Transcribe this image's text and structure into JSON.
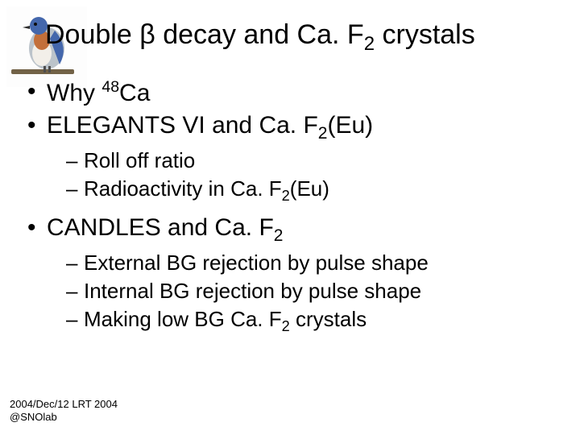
{
  "title_parts": {
    "a": "Double ",
    "beta": "β",
    "b": " decay and Ca. F",
    "sub": "2",
    "c": " crystals"
  },
  "bullets": [
    {
      "level": 1,
      "marker": "•",
      "html": "Why <sup>48</sup>Ca"
    },
    {
      "level": 1,
      "marker": "•",
      "html": "ELEGANTS VI and Ca. F<sub>2</sub>(Eu)"
    },
    {
      "level": 2,
      "marker": "–",
      "html": "Roll off ratio"
    },
    {
      "level": 2,
      "marker": "–",
      "html": "Radioactivity in Ca. F<sub>2</sub>(Eu)"
    },
    {
      "level": 1,
      "marker": "•",
      "html": "CANDLES and Ca. F<sub>2</sub>",
      "gap_before": true
    },
    {
      "level": 2,
      "marker": "–",
      "html": "External BG rejection by pulse shape"
    },
    {
      "level": 2,
      "marker": "–",
      "html": "Internal BG rejection by pulse shape"
    },
    {
      "level": 2,
      "marker": "–",
      "html": "Making low BG Ca. F<sub>2</sub> crystals"
    }
  ],
  "footer": {
    "line1": "2004/Dec/12 LRT 2004",
    "line2": "@SNOlab"
  },
  "style": {
    "title_fontsize": 34,
    "l1_fontsize": 30,
    "l2_fontsize": 26,
    "footer_fontsize": 13,
    "text_color": "#000000",
    "background_color": "#ffffff",
    "bird_colors": {
      "body_gray": "#b8c0c8",
      "head_blue": "#3a5fa8",
      "chest_orange": "#c06830",
      "belly_white": "#f2efe8",
      "branch": "#6b5a3e"
    }
  }
}
